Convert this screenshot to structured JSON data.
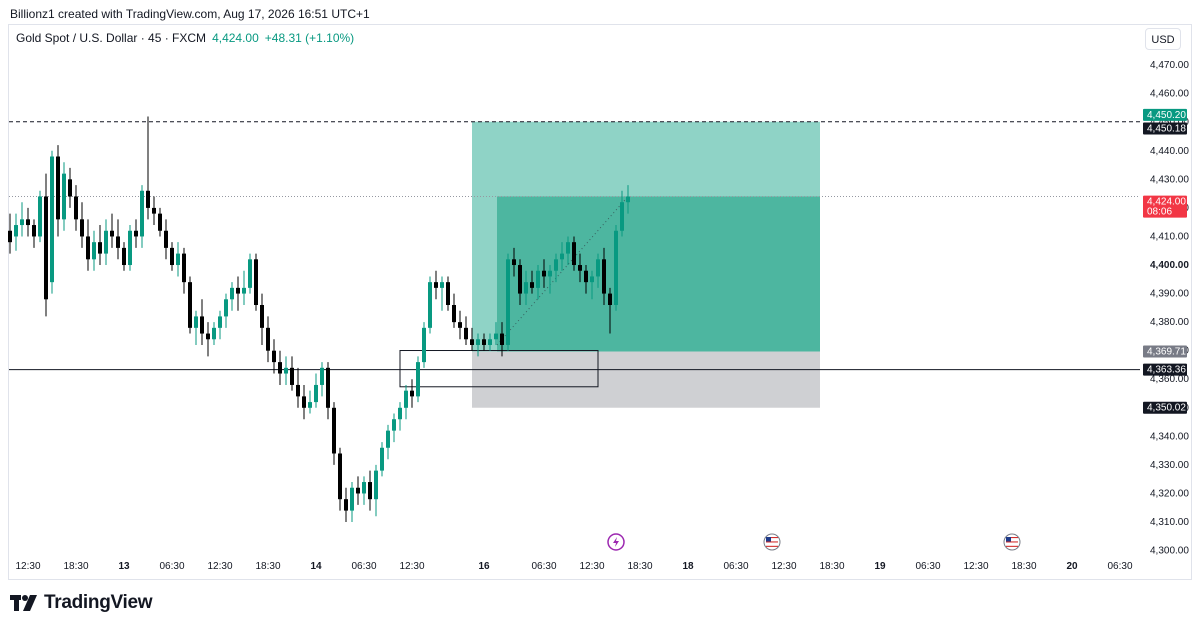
{
  "attribution": "Billionz1 created with TradingView.com, Aug 17, 2026 16:51 UTC+1",
  "legend": {
    "symbol": "Gold Spot / U.S. Dollar · 45 · FXCM",
    "last": "4,424.00",
    "change": "+48.31 (+1.10%)"
  },
  "currency": "USD",
  "brand": "TradingView",
  "colors": {
    "up": "#089981",
    "down": "#000000",
    "profit_light": "#8fd3c6",
    "profit_dark": "#4db6a0",
    "stop": "#cfd0d3",
    "last_price": "#f23645"
  },
  "chart_data": {
    "type": "candlestick",
    "y_axis": {
      "min": 4296,
      "max": 4476,
      "ticks": [
        "4,300.00",
        "4,310.00",
        "4,320.00",
        "4,330.00",
        "4,340.00",
        "4,350.00",
        "4,360.00",
        "4,370.00",
        "4,380.00",
        "4,390.00",
        "4,400.00",
        "4,410.00",
        "4,420.00",
        "4,430.00",
        "4,440.00",
        "4,450.00",
        "4,460.00",
        "4,470.00"
      ],
      "tick_values": [
        4300,
        4310,
        4320,
        4330,
        4340,
        4350,
        4360,
        4370,
        4380,
        4390,
        4400,
        4410,
        4420,
        4430,
        4440,
        4450,
        4460,
        4470
      ]
    },
    "x_axis": {
      "labels": [
        "12:30",
        "18:30",
        "13",
        "06:30",
        "12:30",
        "18:30",
        "14",
        "06:30",
        "12:30",
        "16",
        "06:30",
        "12:30",
        "18:30",
        "18",
        "06:30",
        "12:30",
        "18:30",
        "19",
        "06:30",
        "12:30",
        "18:30",
        "20",
        "06:30"
      ],
      "bold": [
        false,
        false,
        true,
        false,
        false,
        false,
        true,
        false,
        false,
        true,
        false,
        false,
        false,
        true,
        false,
        false,
        false,
        true,
        false,
        false,
        false,
        true,
        false
      ],
      "bar_index": [
        3,
        11,
        19,
        27,
        35,
        43,
        51,
        59,
        67,
        79,
        89,
        97,
        105,
        113,
        121,
        129,
        137,
        145,
        153,
        161,
        169,
        177,
        185
      ]
    },
    "candles": [
      [
        4412,
        4418,
        4404,
        4408
      ],
      [
        4410,
        4418,
        4405,
        4414
      ],
      [
        4414,
        4422,
        4410,
        4416
      ],
      [
        4416,
        4420,
        4410,
        4414
      ],
      [
        4414,
        4416,
        4406,
        4410
      ],
      [
        4410,
        4426,
        4408,
        4424
      ],
      [
        4424,
        4432,
        4382,
        4388
      ],
      [
        4394,
        4440,
        4390,
        4438
      ],
      [
        4438,
        4442,
        4410,
        4416
      ],
      [
        4416,
        4436,
        4412,
        4432
      ],
      [
        4430,
        4434,
        4420,
        4424
      ],
      [
        4424,
        4428,
        4412,
        4416
      ],
      [
        4416,
        4422,
        4406,
        4410
      ],
      [
        4410,
        4416,
        4398,
        4402
      ],
      [
        4402,
        4412,
        4398,
        4408
      ],
      [
        4408,
        4414,
        4400,
        4404
      ],
      [
        4404,
        4416,
        4400,
        4412
      ],
      [
        4412,
        4418,
        4406,
        4410
      ],
      [
        4410,
        4416,
        4402,
        4406
      ],
      [
        4406,
        4408,
        4398,
        4400
      ],
      [
        4400,
        4414,
        4398,
        4412
      ],
      [
        4412,
        4416,
        4406,
        4410
      ],
      [
        4410,
        4428,
        4406,
        4426
      ],
      [
        4426,
        4452,
        4416,
        4420
      ],
      [
        4420,
        4424,
        4414,
        4418
      ],
      [
        4418,
        4420,
        4410,
        4412
      ],
      [
        4412,
        4416,
        4402,
        4406
      ],
      [
        4406,
        4408,
        4398,
        4400
      ],
      [
        4400,
        4408,
        4396,
        4404
      ],
      [
        4404,
        4406,
        4390,
        4394
      ],
      [
        4394,
        4396,
        4376,
        4378
      ],
      [
        4378,
        4384,
        4372,
        4382
      ],
      [
        4382,
        4388,
        4372,
        4376
      ],
      [
        4376,
        4380,
        4368,
        4374
      ],
      [
        4374,
        4380,
        4372,
        4378
      ],
      [
        4378,
        4384,
        4374,
        4382
      ],
      [
        4382,
        4390,
        4378,
        4388
      ],
      [
        4388,
        4394,
        4384,
        4392
      ],
      [
        4392,
        4396,
        4384,
        4390
      ],
      [
        4390,
        4398,
        4386,
        4392
      ],
      [
        4392,
        4404,
        4390,
        4402
      ],
      [
        4402,
        4404,
        4384,
        4386
      ],
      [
        4386,
        4390,
        4372,
        4378
      ],
      [
        4378,
        4382,
        4366,
        4370
      ],
      [
        4370,
        4374,
        4362,
        4366
      ],
      [
        4366,
        4370,
        4358,
        4362
      ],
      [
        4362,
        4368,
        4358,
        4364
      ],
      [
        4364,
        4368,
        4356,
        4358
      ],
      [
        4358,
        4364,
        4350,
        4354
      ],
      [
        4354,
        4358,
        4346,
        4350
      ],
      [
        4350,
        4356,
        4348,
        4352
      ],
      [
        4352,
        4362,
        4350,
        4358
      ],
      [
        4358,
        4366,
        4354,
        4364
      ],
      [
        4364,
        4366,
        4346,
        4350
      ],
      [
        4350,
        4352,
        4330,
        4334
      ],
      [
        4334,
        4336,
        4314,
        4318
      ],
      [
        4318,
        4322,
        4310,
        4314
      ],
      [
        4314,
        4324,
        4310,
        4322
      ],
      [
        4322,
        4326,
        4316,
        4320
      ],
      [
        4320,
        4326,
        4316,
        4324
      ],
      [
        4324,
        4328,
        4314,
        4318
      ],
      [
        4318,
        4330,
        4312,
        4328
      ],
      [
        4328,
        4338,
        4326,
        4336
      ],
      [
        4336,
        4344,
        4332,
        4342
      ],
      [
        4342,
        4348,
        4338,
        4346
      ],
      [
        4346,
        4352,
        4342,
        4350
      ],
      [
        4350,
        4358,
        4346,
        4356
      ],
      [
        4356,
        4360,
        4350,
        4354
      ],
      [
        4354,
        4368,
        4352,
        4366
      ],
      [
        4366,
        4380,
        4364,
        4378
      ],
      [
        4378,
        4396,
        4376,
        4394
      ],
      [
        4394,
        4398,
        4388,
        4392
      ],
      [
        4392,
        4396,
        4384,
        4394
      ],
      [
        4394,
        4396,
        4384,
        4386
      ],
      [
        4386,
        4390,
        4378,
        4380
      ],
      [
        4380,
        4384,
        4374,
        4378
      ],
      [
        4378,
        4382,
        4372,
        4374
      ],
      [
        4374,
        4378,
        4370,
        4372
      ],
      [
        4372,
        4376,
        4368,
        4374
      ],
      [
        4374,
        4376,
        4370,
        4372
      ],
      [
        4372,
        4376,
        4370,
        4374
      ],
      [
        4374,
        4380,
        4372,
        4376
      ],
      [
        4376,
        4380,
        4368,
        4372
      ],
      [
        4372,
        4404,
        4370,
        4402
      ],
      [
        4402,
        4406,
        4396,
        4400
      ],
      [
        4400,
        4402,
        4386,
        4390
      ],
      [
        4390,
        4398,
        4386,
        4394
      ],
      [
        4394,
        4398,
        4390,
        4392
      ],
      [
        4392,
        4400,
        4388,
        4398
      ],
      [
        4398,
        4402,
        4392,
        4396
      ],
      [
        4396,
        4400,
        4390,
        4398
      ],
      [
        4398,
        4404,
        4394,
        4402
      ],
      [
        4402,
        4408,
        4398,
        4404
      ],
      [
        4404,
        4410,
        4400,
        4408
      ],
      [
        4408,
        4410,
        4398,
        4400
      ],
      [
        4400,
        4404,
        4394,
        4398
      ],
      [
        4398,
        4400,
        4390,
        4394
      ],
      [
        4394,
        4398,
        4388,
        4396
      ],
      [
        4396,
        4404,
        4392,
        4402
      ],
      [
        4402,
        4406,
        4386,
        4390
      ],
      [
        4390,
        4392,
        4376,
        4386
      ],
      [
        4386,
        4414,
        4384,
        4412
      ],
      [
        4412,
        4426,
        4410,
        4422
      ],
      [
        4422,
        4428,
        4418,
        4424
      ]
    ],
    "horizontal_lines": [
      {
        "price": 4450.18,
        "style": "dashed",
        "label": "4,450.18"
      },
      {
        "price": 4363.36,
        "style": "solid",
        "label": "4,363.36"
      },
      {
        "price": 4424.0,
        "style": "dotted"
      }
    ],
    "position_tool": {
      "type": "long",
      "entry": 4369.71,
      "target": 4450.18,
      "stop": 4350.02,
      "start_bar": 77,
      "end_bar": 135,
      "fill_to_bar": 98
    },
    "zone_box": {
      "top": 4369.71,
      "bottom": 4363.36,
      "start_bar": 65,
      "end_bar": 98
    },
    "price_labels": [
      {
        "text": "4,450.20",
        "price": 4452.6,
        "bg": "#089981",
        "fg": "#ffffff"
      },
      {
        "text": "4,450.18",
        "price": 4447.8,
        "bg": "#131722",
        "fg": "#ffffff"
      },
      {
        "text": "4,424.00",
        "sub": "08:06",
        "price": 4422.2,
        "bg": "#f23645",
        "fg": "#ffffff"
      },
      {
        "text": "4,369.71",
        "price": 4369.71,
        "bg": "#787b86",
        "fg": "#ffffff"
      },
      {
        "text": "4,363.36",
        "price": 4363.36,
        "bg": "#131722",
        "fg": "#ffffff"
      },
      {
        "text": "4,350.02",
        "price": 4350.02,
        "bg": "#131722",
        "fg": "#ffffff"
      }
    ],
    "event_markers": [
      {
        "type": "lightning-icon",
        "bar_index": 101
      },
      {
        "type": "us-flag-icon",
        "bar_index": 127
      },
      {
        "type": "us-flag-icon",
        "bar_index": 167
      }
    ]
  }
}
